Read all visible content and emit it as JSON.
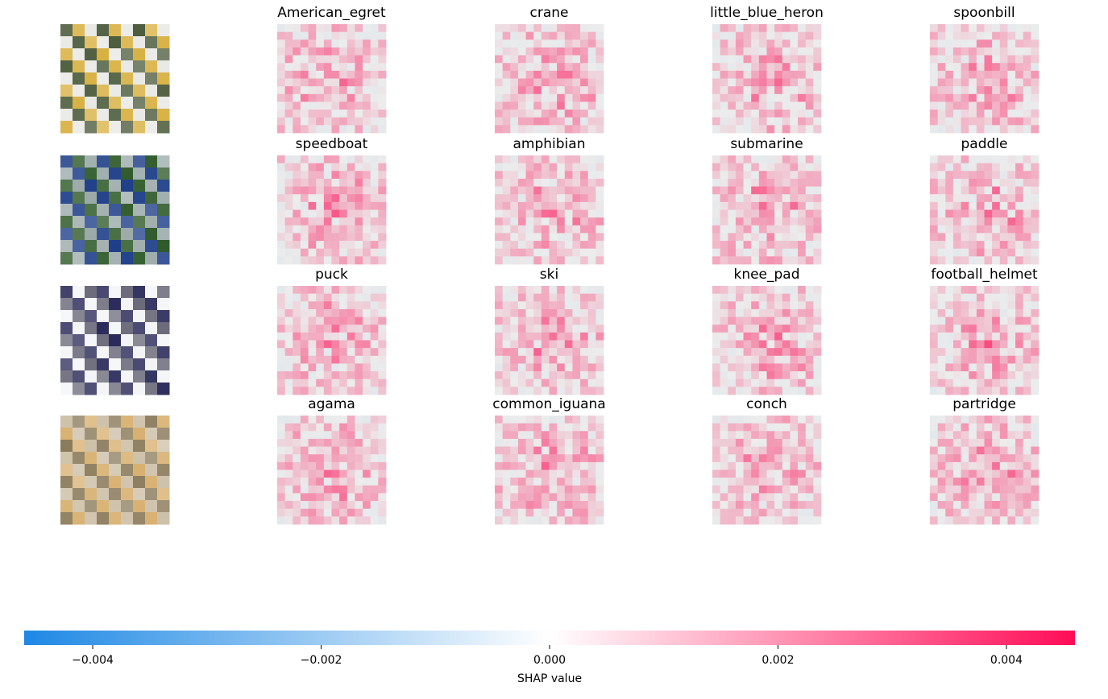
{
  "chart_data": {
    "type": "heatmap",
    "title": "",
    "rows": [
      {
        "input_image": "egret-photo",
        "photo_colors": [
          "#4a5a3a",
          "#e8e8e4",
          "#d8b040"
        ],
        "labels": [
          "American_egret",
          "crane",
          "little_blue_heron",
          "spoonbill"
        ]
      },
      {
        "input_image": "speedboat-photo",
        "photo_colors": [
          "#2f5a2a",
          "#1f3f8a",
          "#9aa8a8"
        ],
        "labels": [
          "speedboat",
          "amphibian",
          "submarine",
          "paddle"
        ]
      },
      {
        "input_image": "hockey-photo",
        "photo_colors": [
          "#6a6a7a",
          "#f2f4f6",
          "#2a2a5a"
        ],
        "labels": [
          "puck",
          "ski",
          "knee_pad",
          "football_helmet"
        ]
      },
      {
        "input_image": "lizard-photo",
        "photo_colors": [
          "#cdc0a8",
          "#d8b070",
          "#8a7a5a"
        ],
        "labels": [
          "agama",
          "common_iguana",
          "conch",
          "partridge"
        ]
      }
    ],
    "colorbar": {
      "label": "SHAP value",
      "range": [
        -0.0046,
        0.0046
      ],
      "ticks": [
        -0.004,
        -0.002,
        0.0,
        0.002,
        0.004
      ],
      "tick_labels": [
        "−0.004",
        "−0.002",
        "0.000",
        "0.002",
        "0.004"
      ],
      "neg_color": "#1e88e5",
      "zero_color": "#ffffff",
      "pos_color": "#ff0d57"
    }
  }
}
